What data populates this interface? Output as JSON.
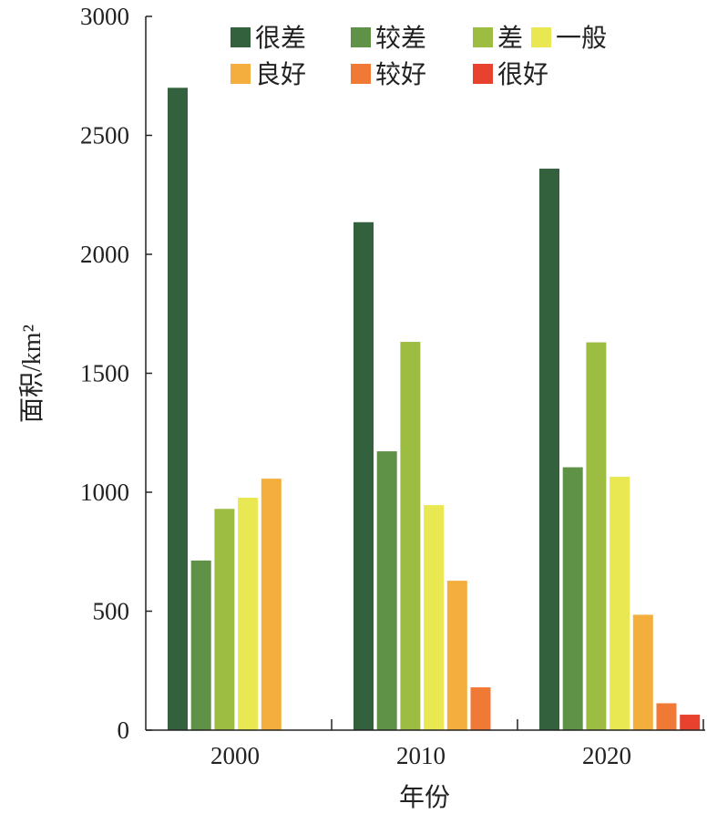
{
  "chart_data": {
    "type": "bar",
    "title": "",
    "xlabel": "年份",
    "ylabel": "面积/km²",
    "ylim": [
      0,
      3000
    ],
    "yticks": [
      "0",
      "500",
      "1000",
      "1500",
      "2000",
      "2500",
      "3000"
    ],
    "categories": [
      "2000",
      "2010",
      "2020"
    ],
    "legend_position": "top",
    "series": [
      {
        "name": "很差",
        "color": "#33603d",
        "values": [
          2700,
          2135,
          2360
        ]
      },
      {
        "name": "较差",
        "color": "#5f9147",
        "values": [
          713,
          1172,
          1105
        ]
      },
      {
        "name": "差",
        "color": "#9cbd42",
        "values": [
          930,
          1632,
          1630
        ]
      },
      {
        "name": "一般",
        "color": "#e9e853",
        "values": [
          977,
          946,
          1065
        ]
      },
      {
        "name": "良好",
        "color": "#f4ae3d",
        "values": [
          1057,
          628,
          485
        ]
      },
      {
        "name": "较好",
        "color": "#f07a35",
        "values": [
          null,
          180,
          113
        ]
      },
      {
        "name": "很好",
        "color": "#e8422f",
        "values": [
          null,
          null,
          65
        ]
      }
    ]
  }
}
